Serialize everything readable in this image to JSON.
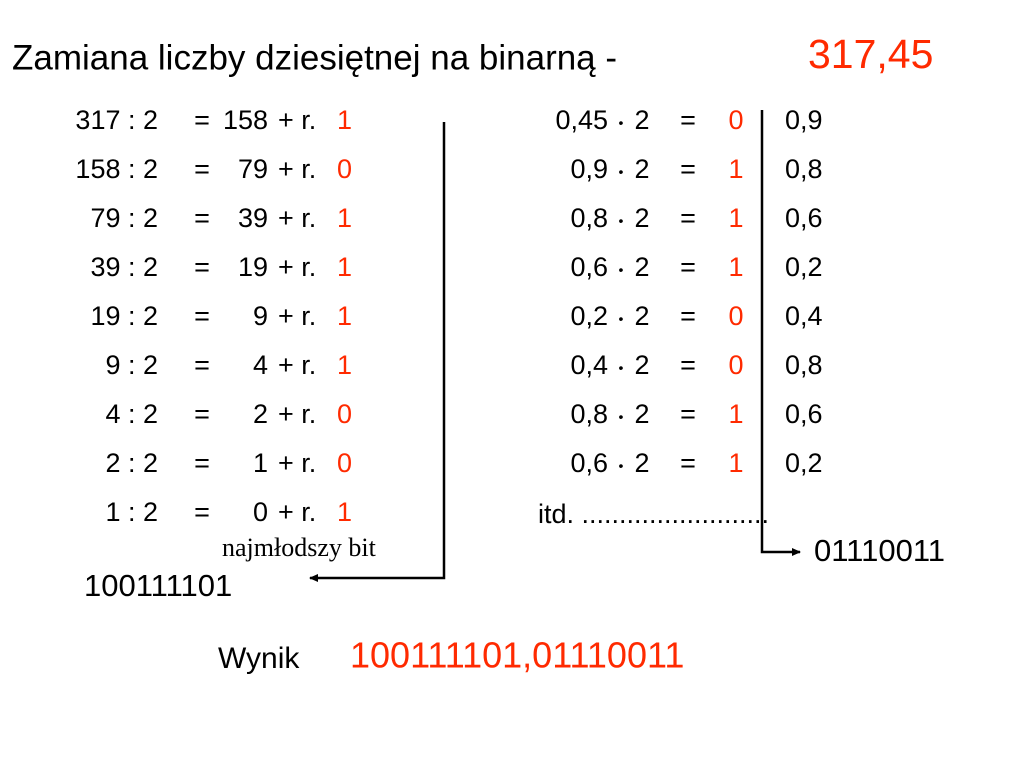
{
  "title": {
    "text": "Zamiana liczby dziesiętnej na binarną -",
    "number": "317,45"
  },
  "integer_part": {
    "rows": [
      {
        "lhs": "317 : 2",
        "eq": "=",
        "quotient": "158",
        "rest": "+ r.",
        "bit": "1"
      },
      {
        "lhs": "158 : 2",
        "eq": "=",
        "quotient": "79",
        "rest": "+ r.",
        "bit": "0"
      },
      {
        "lhs": "79 : 2",
        "eq": "=",
        "quotient": "39",
        "rest": "+ r.",
        "bit": "1"
      },
      {
        "lhs": "39 : 2",
        "eq": "=",
        "quotient": "19",
        "rest": "+ r.",
        "bit": "1"
      },
      {
        "lhs": "19 : 2",
        "eq": "=",
        "quotient": "9",
        "rest": "+ r.",
        "bit": "1"
      },
      {
        "lhs": "9 : 2",
        "eq": "=",
        "quotient": "4",
        "rest": "+ r.",
        "bit": "1"
      },
      {
        "lhs": "4 : 2",
        "eq": "=",
        "quotient": "2",
        "rest": "+ r.",
        "bit": "0"
      },
      {
        "lhs": "2 : 2",
        "eq": "=",
        "quotient": "1",
        "rest": "+ r.",
        "bit": "0"
      },
      {
        "lhs": "1 : 2",
        "eq": "=",
        "quotient": "0",
        "rest": "+ r.",
        "bit": "1"
      }
    ],
    "note": "najmłodszy bit",
    "result": "100111101"
  },
  "fraction_part": {
    "rows": [
      {
        "lhs": "0,45",
        "dot": "•",
        "factor": "2",
        "eq": "=",
        "bit": "0",
        "frac": "0,9"
      },
      {
        "lhs": "0,9",
        "dot": "•",
        "factor": "2",
        "eq": "=",
        "bit": "1",
        "frac": "0,8"
      },
      {
        "lhs": "0,8",
        "dot": "•",
        "factor": "2",
        "eq": "=",
        "bit": "1",
        "frac": "0,6"
      },
      {
        "lhs": "0,6",
        "dot": "•",
        "factor": "2",
        "eq": "=",
        "bit": "1",
        "frac": "0,2"
      },
      {
        "lhs": "0,2",
        "dot": "•",
        "factor": "2",
        "eq": "=",
        "bit": "0",
        "frac": "0,4"
      },
      {
        "lhs": "0,4",
        "dot": "•",
        "factor": "2",
        "eq": "=",
        "bit": "0",
        "frac": "0,8"
      },
      {
        "lhs": "0,8",
        "dot": "•",
        "factor": "2",
        "eq": "=",
        "bit": "1",
        "frac": "0,6"
      },
      {
        "lhs": "0,6",
        "dot": "•",
        "factor": "2",
        "eq": "=",
        "bit": "1",
        "frac": "0,2"
      }
    ],
    "etc": "itd. .........................",
    "result": "01110011"
  },
  "result": {
    "label": "Wynik",
    "value": "100111101,01110011"
  }
}
